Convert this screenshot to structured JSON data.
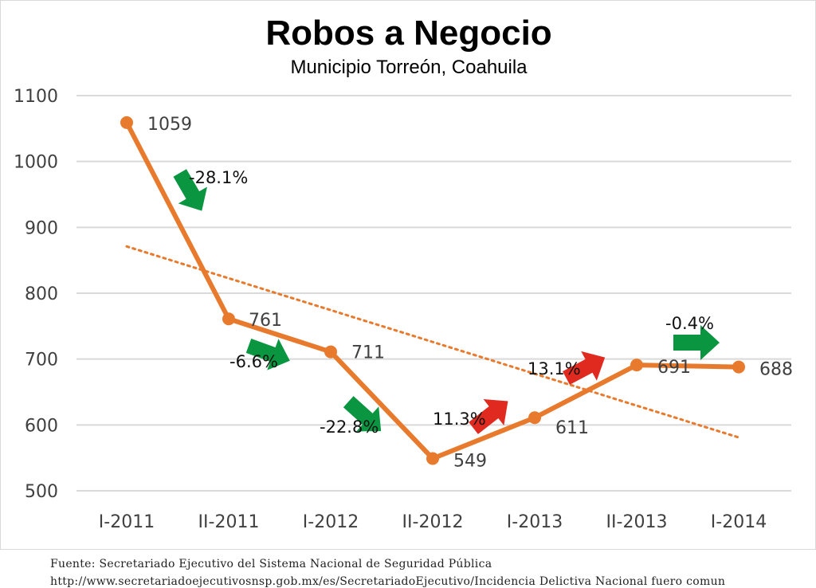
{
  "chart_data": {
    "type": "line",
    "title": "Robos a Negocio",
    "subtitle": "Municipio Torreón, Coahuila",
    "categories": [
      "I-2011",
      "II-2011",
      "I-2012",
      "II-2012",
      "I-2013",
      "II-2013",
      "I-2014"
    ],
    "series": [
      {
        "values": [
          1059,
          761,
          711,
          549,
          611,
          691,
          688
        ],
        "color": "#e87a2d"
      }
    ],
    "data_labels": [
      "1059",
      "761",
      "711",
      "549",
      "611",
      "691",
      "688"
    ],
    "yticks": [
      500,
      600,
      700,
      800,
      900,
      1000,
      1100
    ],
    "ylim": [
      500,
      1100
    ],
    "grid": true,
    "trendline": {
      "style": "dotted",
      "color": "#e87a2d",
      "start": 871,
      "end": 581
    },
    "changes": [
      {
        "label": "-28.1%",
        "direction": "down",
        "color": "#0a9641"
      },
      {
        "label": "-6.6%",
        "direction": "down",
        "color": "#0a9641"
      },
      {
        "label": "-22.8%",
        "direction": "down",
        "color": "#0a9641"
      },
      {
        "label": "11.3%",
        "direction": "up",
        "color": "#e02a20"
      },
      {
        "label": "13.1%",
        "direction": "up",
        "color": "#e02a20"
      },
      {
        "label": "-0.4%",
        "direction": "flat",
        "color": "#0a9641"
      }
    ]
  },
  "source": {
    "line1": "Fuente: Secretariado Ejecutivo del Sistema Nacional de Seguridad Pública",
    "line2": "http://www.secretariadoejecutivosnsp.gob.mx/es/SecretariadoEjecutivo/Incidencia Delictiva Nacional fuero comun"
  }
}
